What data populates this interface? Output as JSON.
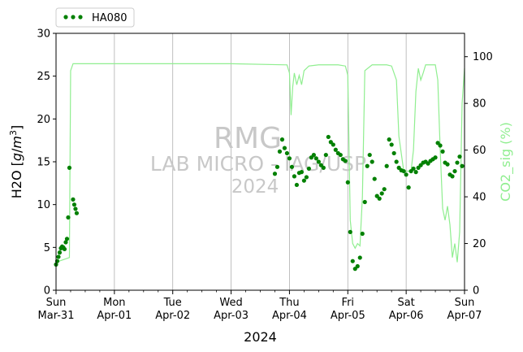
{
  "chart_data": {
    "type": "line",
    "title": "",
    "xlabel": "2024",
    "ylabel_left": "H2O [g/m3]",
    "ylabel_right": "CO2_sig (%)",
    "ylim_left": [
      0,
      30
    ],
    "ylim_right": [
      0,
      110
    ],
    "xlim": [
      "2024-03-31T00:00",
      "2024-04-07T00:00"
    ],
    "yticks_left": [
      "0",
      "5",
      "10",
      "15",
      "20",
      "25",
      "30"
    ],
    "yticks_right": [
      "0",
      "20",
      "40",
      "60",
      "80",
      "100"
    ],
    "xticks": [
      {
        "date": "2024-03-31",
        "line1": "Sun",
        "line2": "Mar-31"
      },
      {
        "date": "2024-04-01",
        "line1": "Mon",
        "line2": "Apr-01"
      },
      {
        "date": "2024-04-02",
        "line1": "Tue",
        "line2": "Apr-02"
      },
      {
        "date": "2024-04-03",
        "line1": "Wed",
        "line2": "Apr-03"
      },
      {
        "date": "2024-04-04",
        "line1": "Thu",
        "line2": "Apr-04"
      },
      {
        "date": "2024-04-05",
        "line1": "Fri",
        "line2": "Apr-05"
      },
      {
        "date": "2024-04-06",
        "line1": "Sat",
        "line2": "Apr-06"
      },
      {
        "date": "2024-04-07",
        "line1": "Sun",
        "line2": "Apr-07"
      }
    ],
    "grid": "vertical",
    "legend_position": "top-left",
    "watermark": {
      "line1": "RMG",
      "line2": "LAB MICRO - IAG/USP",
      "line3": "2024"
    },
    "series": [
      {
        "name": "HA080",
        "axis": "left",
        "style": "dots",
        "color": "#008000",
        "points": [
          [
            "2024-03-31T00:00",
            3.0
          ],
          [
            "2024-03-31T00:30",
            3.4
          ],
          [
            "2024-03-31T01:00",
            3.9
          ],
          [
            "2024-03-31T01:30",
            4.4
          ],
          [
            "2024-03-31T02:00",
            4.9
          ],
          [
            "2024-03-31T02:30",
            5.1
          ],
          [
            "2024-03-31T03:00",
            5.0
          ],
          [
            "2024-03-31T03:30",
            4.8
          ],
          [
            "2024-03-31T04:00",
            5.6
          ],
          [
            "2024-03-31T04:30",
            6.0
          ],
          [
            "2024-03-31T05:00",
            8.5
          ],
          [
            "2024-03-31T05:30",
            14.3
          ],
          [
            "2024-03-31T07:00",
            10.6
          ],
          [
            "2024-03-31T07:30",
            10.0
          ],
          [
            "2024-03-31T08:00",
            9.5
          ],
          [
            "2024-03-31T08:30",
            9.0
          ],
          [
            "2024-04-03T18:00",
            13.6
          ],
          [
            "2024-04-03T19:00",
            14.4
          ],
          [
            "2024-04-03T20:00",
            16.2
          ],
          [
            "2024-04-03T21:00",
            17.6
          ],
          [
            "2024-04-03T22:00",
            16.6
          ],
          [
            "2024-04-03T23:00",
            16.0
          ],
          [
            "2024-04-04T00:00",
            15.4
          ],
          [
            "2024-04-04T01:00",
            14.4
          ],
          [
            "2024-04-04T02:00",
            13.3
          ],
          [
            "2024-04-04T03:00",
            12.3
          ],
          [
            "2024-04-04T04:00",
            13.7
          ],
          [
            "2024-04-04T05:00",
            13.8
          ],
          [
            "2024-04-04T06:00",
            12.8
          ],
          [
            "2024-04-04T07:00",
            13.2
          ],
          [
            "2024-04-04T08:00",
            14.2
          ],
          [
            "2024-04-04T09:00",
            15.5
          ],
          [
            "2024-04-04T10:00",
            15.8
          ],
          [
            "2024-04-04T11:00",
            15.4
          ],
          [
            "2024-04-04T12:00",
            15.0
          ],
          [
            "2024-04-04T13:00",
            14.6
          ],
          [
            "2024-04-04T14:00",
            14.3
          ],
          [
            "2024-04-04T15:00",
            15.8
          ],
          [
            "2024-04-04T16:00",
            17.9
          ],
          [
            "2024-04-04T17:00",
            17.3
          ],
          [
            "2024-04-04T18:00",
            17.0
          ],
          [
            "2024-04-04T19:00",
            16.4
          ],
          [
            "2024-04-04T20:00",
            16.0
          ],
          [
            "2024-04-04T21:00",
            15.8
          ],
          [
            "2024-04-04T22:00",
            15.3
          ],
          [
            "2024-04-04T23:00",
            15.1
          ],
          [
            "2024-04-05T00:00",
            12.6
          ],
          [
            "2024-04-05T01:00",
            6.8
          ],
          [
            "2024-04-05T02:00",
            3.4
          ],
          [
            "2024-04-05T03:00",
            2.5
          ],
          [
            "2024-04-05T04:00",
            2.8
          ],
          [
            "2024-04-05T05:00",
            3.8
          ],
          [
            "2024-04-05T06:00",
            6.6
          ],
          [
            "2024-04-05T07:00",
            10.3
          ],
          [
            "2024-04-05T08:00",
            14.5
          ],
          [
            "2024-04-05T09:00",
            15.8
          ],
          [
            "2024-04-05T10:00",
            15.0
          ],
          [
            "2024-04-05T11:00",
            13.0
          ],
          [
            "2024-04-05T12:00",
            11.0
          ],
          [
            "2024-04-05T13:00",
            10.7
          ],
          [
            "2024-04-05T14:00",
            11.3
          ],
          [
            "2024-04-05T15:00",
            11.8
          ],
          [
            "2024-04-05T16:00",
            14.5
          ],
          [
            "2024-04-05T17:00",
            17.6
          ],
          [
            "2024-04-05T18:00",
            17.0
          ],
          [
            "2024-04-05T19:00",
            16.0
          ],
          [
            "2024-04-05T20:00",
            15.0
          ],
          [
            "2024-04-05T21:00",
            14.3
          ],
          [
            "2024-04-05T22:00",
            14.0
          ],
          [
            "2024-04-05T23:00",
            13.9
          ],
          [
            "2024-04-06T00:00",
            13.5
          ],
          [
            "2024-04-06T01:00",
            12.0
          ],
          [
            "2024-04-06T02:00",
            13.9
          ],
          [
            "2024-04-06T03:00",
            14.2
          ],
          [
            "2024-04-06T04:00",
            13.8
          ],
          [
            "2024-04-06T05:00",
            14.3
          ],
          [
            "2024-04-06T06:00",
            14.6
          ],
          [
            "2024-04-06T07:00",
            14.9
          ],
          [
            "2024-04-06T08:00",
            15.0
          ],
          [
            "2024-04-06T09:00",
            14.8
          ],
          [
            "2024-04-06T10:00",
            15.1
          ],
          [
            "2024-04-06T11:00",
            15.3
          ],
          [
            "2024-04-06T12:00",
            15.5
          ],
          [
            "2024-04-06T13:00",
            17.2
          ],
          [
            "2024-04-06T14:00",
            16.9
          ],
          [
            "2024-04-06T15:00",
            16.2
          ],
          [
            "2024-04-06T16:00",
            14.9
          ],
          [
            "2024-04-06T17:00",
            14.7
          ],
          [
            "2024-04-06T18:00",
            13.5
          ],
          [
            "2024-04-06T19:00",
            13.3
          ],
          [
            "2024-04-06T20:00",
            13.9
          ],
          [
            "2024-04-06T21:00",
            14.9
          ],
          [
            "2024-04-06T22:00",
            15.6
          ],
          [
            "2024-04-06T23:00",
            14.5
          ]
        ]
      },
      {
        "name": "",
        "axis": "right",
        "style": "line",
        "color": "#90ee90",
        "points": [
          [
            "2024-03-31T00:00",
            12
          ],
          [
            "2024-03-31T05:30",
            14
          ],
          [
            "2024-03-31T06:00",
            94
          ],
          [
            "2024-03-31T07:00",
            97
          ],
          [
            "2024-04-01T00:00",
            97
          ],
          [
            "2024-04-02T00:00",
            97
          ],
          [
            "2024-04-03T00:00",
            97
          ],
          [
            "2024-04-03T23:00",
            96.5
          ],
          [
            "2024-04-04T00:00",
            93
          ],
          [
            "2024-04-04T00:40",
            75
          ],
          [
            "2024-04-04T01:20",
            87
          ],
          [
            "2024-04-04T02:00",
            93
          ],
          [
            "2024-04-04T03:00",
            88
          ],
          [
            "2024-04-04T04:00",
            92
          ],
          [
            "2024-04-04T05:00",
            88
          ],
          [
            "2024-04-04T06:00",
            94
          ],
          [
            "2024-04-04T08:00",
            96
          ],
          [
            "2024-04-04T12:00",
            96.5
          ],
          [
            "2024-04-04T20:00",
            96.5
          ],
          [
            "2024-04-04T23:00",
            96
          ],
          [
            "2024-04-05T00:00",
            92
          ],
          [
            "2024-04-05T01:00",
            30
          ],
          [
            "2024-04-05T02:00",
            20
          ],
          [
            "2024-04-05T03:00",
            18
          ],
          [
            "2024-04-05T04:00",
            20
          ],
          [
            "2024-04-05T05:00",
            19
          ],
          [
            "2024-04-05T06:00",
            40
          ],
          [
            "2024-04-05T07:00",
            94
          ],
          [
            "2024-04-05T10:00",
            96.5
          ],
          [
            "2024-04-05T16:00",
            96.5
          ],
          [
            "2024-04-05T18:00",
            96
          ],
          [
            "2024-04-05T20:00",
            90
          ],
          [
            "2024-04-05T21:00",
            66
          ],
          [
            "2024-04-05T23:00",
            51
          ],
          [
            "2024-04-06T02:00",
            51
          ],
          [
            "2024-04-06T03:00",
            60
          ],
          [
            "2024-04-06T04:00",
            85
          ],
          [
            "2024-04-06T05:00",
            95
          ],
          [
            "2024-04-06T06:00",
            90
          ],
          [
            "2024-04-06T07:00",
            93
          ],
          [
            "2024-04-06T08:00",
            96.5
          ],
          [
            "2024-04-06T12:00",
            96.5
          ],
          [
            "2024-04-06T13:00",
            90
          ],
          [
            "2024-04-06T14:00",
            60
          ],
          [
            "2024-04-06T15:00",
            35
          ],
          [
            "2024-04-06T16:00",
            30
          ],
          [
            "2024-04-06T17:00",
            36
          ],
          [
            "2024-04-06T18:00",
            28
          ],
          [
            "2024-04-06T19:00",
            14
          ],
          [
            "2024-04-06T20:00",
            20
          ],
          [
            "2024-04-06T21:00",
            12
          ],
          [
            "2024-04-06T22:00",
            25
          ],
          [
            "2024-04-06T23:00",
            80
          ],
          [
            "2024-04-07T00:00",
            95
          ]
        ]
      }
    ]
  }
}
